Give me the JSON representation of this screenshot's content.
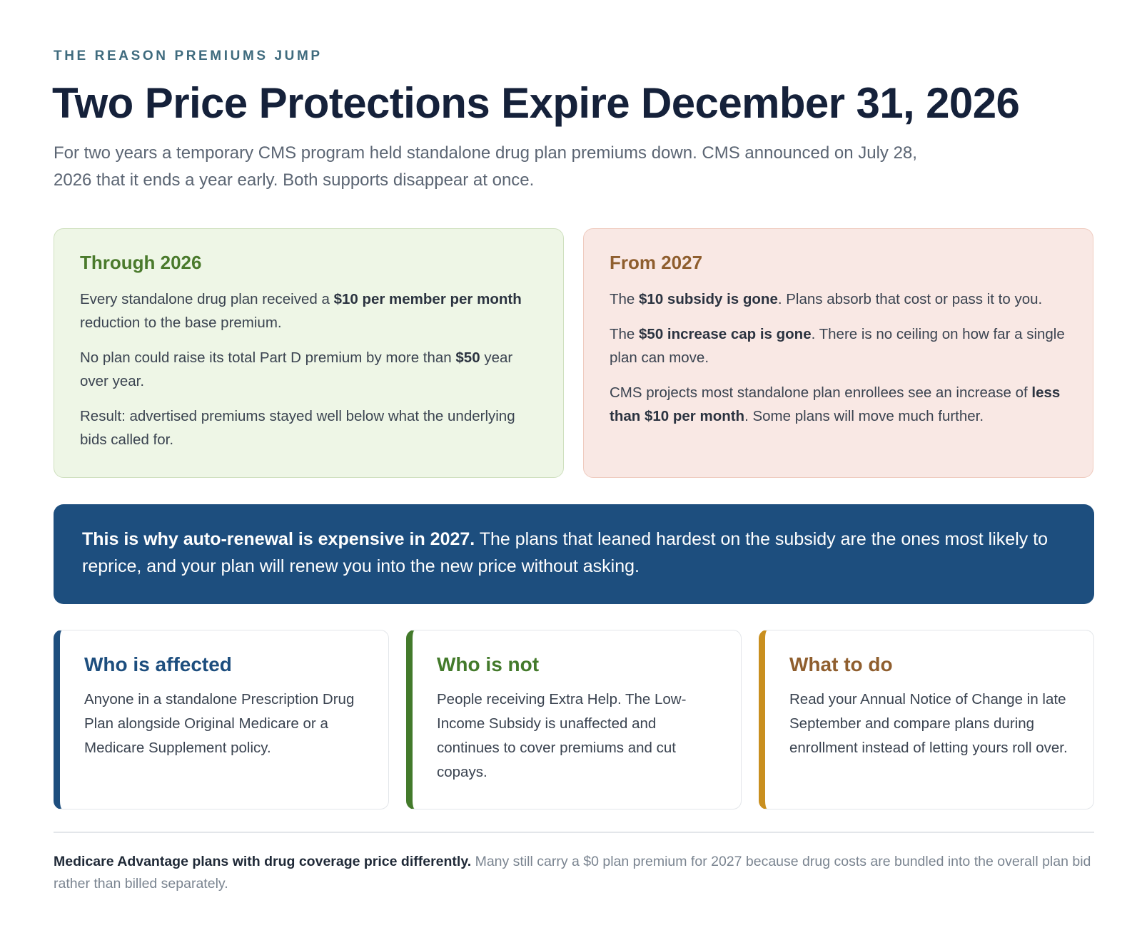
{
  "header": {
    "eyebrow": "THE REASON PREMIUMS JUMP",
    "title": "Two Price Protections Expire December 31, 2026",
    "subtitle": "For two years a temporary CMS program held standalone drug plan premiums down. CMS announced on July 28, 2026 that it ends a year early. Both supports disappear at once."
  },
  "through_2026": {
    "heading": "Through 2026",
    "p1_a": "Every standalone drug plan received a ",
    "p1_b": "$10 per member per month",
    "p1_c": " reduction to the base premium.",
    "p2_a": "No plan could raise its total Part D premium by more than ",
    "p2_b": "$50",
    "p2_c": " year over year.",
    "p3": "Result: advertised premiums stayed well below what the underlying bids called for."
  },
  "from_2027": {
    "heading": "From 2027",
    "p1_a": "The ",
    "p1_b": "$10 subsidy is gone",
    "p1_c": ". Plans absorb that cost or pass it to you.",
    "p2_a": "The ",
    "p2_b": "$50 increase cap is gone",
    "p2_c": ". There is no ceiling on how far a single plan can move.",
    "p3_a": "CMS projects most standalone plan enrollees see an increase of ",
    "p3_b": "less than $10 per month",
    "p3_c": ". Some plans will move much further."
  },
  "banner": {
    "bold": "This is why auto-renewal is expensive in 2027.",
    "text": " The plans that leaned hardest on the subsidy are the ones most likely to reprice, and your plan will renew you into the new price without asking."
  },
  "cards": [
    {
      "heading": "Who is affected",
      "text": "Anyone in a standalone Prescription Drug Plan alongside Original Medicare or a Medicare Supplement policy."
    },
    {
      "heading": "Who is not",
      "text": "People receiving Extra Help. The Low-Income Subsidy is unaffected and continues to cover premiums and cut copays."
    },
    {
      "heading": "What to do",
      "text": "Read your Annual Notice of Change in late September and compare plans during enrollment instead of letting yours roll over."
    }
  ],
  "footnote": {
    "bold": "Medicare Advantage plans with drug coverage price differently.",
    "text": " Many still carry a $0 plan premium for 2027 because drug costs are bundled into the overall plan bid rather than billed separately."
  },
  "colors": {
    "navy": "#1d4e7e",
    "green": "#437a2b",
    "gold": "#c98f1f",
    "brown": "#8f5e2e"
  }
}
